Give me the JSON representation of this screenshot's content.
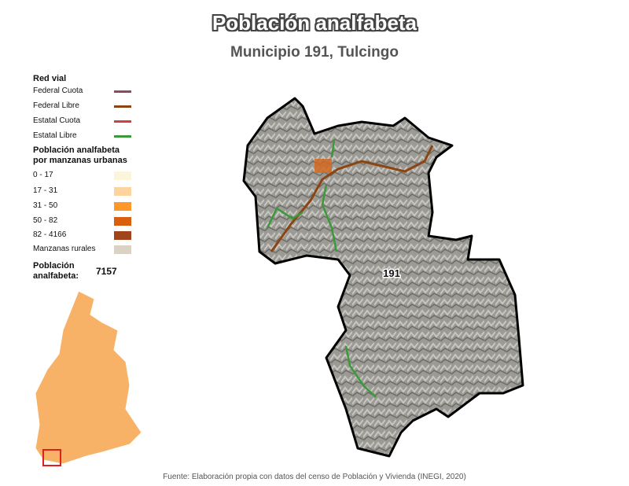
{
  "header": {
    "title": "Población analfabeta",
    "subtitle": "Municipio 191, Tulcingo"
  },
  "legend": {
    "roads_title": "Red vial",
    "roads": [
      "Federal Cuota",
      "Federal Libre",
      "Estatal Cuota",
      "Estatal Libre"
    ],
    "population_title": "Población analfabeta por manzanas urbanas",
    "ranges": [
      "0 - 17",
      "17 - 31",
      "31 - 50",
      "50 - 82",
      "82 - 4166"
    ],
    "rural": "Manzanas rurales",
    "total_label": "Población analfabeta:",
    "total_value": 7157
  },
  "map": {
    "municipality_label": "191"
  },
  "footer": {
    "source": "Fuente: Elaboración propia con datos del censo de Población y Vivienda (INEGI, 2020)"
  }
}
